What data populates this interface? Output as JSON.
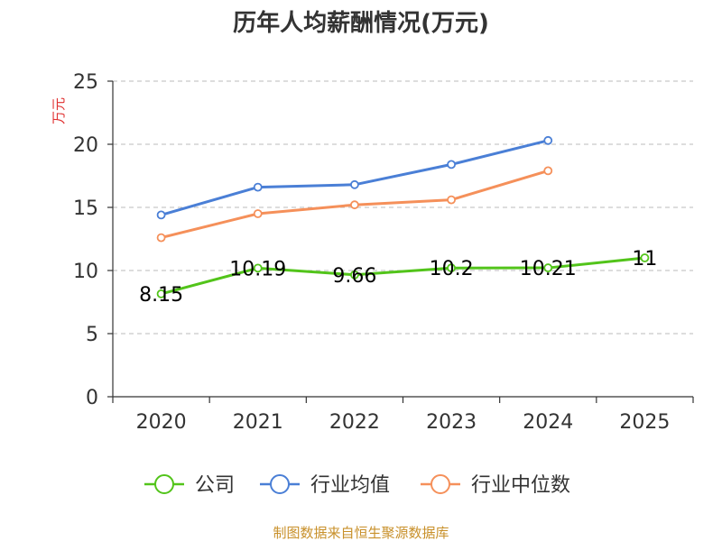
{
  "chart_data": {
    "type": "line",
    "title": "历年人均薪酬情况(万元)",
    "ylabel": "万元",
    "xlabel": "",
    "categories": [
      "2020",
      "2021",
      "2022",
      "2023",
      "2024",
      "2025"
    ],
    "ylim": [
      0,
      25
    ],
    "yticks": [
      0,
      5,
      10,
      15,
      20,
      25
    ],
    "grid": true,
    "legend_position": "bottom",
    "series": [
      {
        "name": "公司",
        "color": "#52c41a",
        "values": [
          8.15,
          10.19,
          9.66,
          10.2,
          10.21,
          11
        ],
        "labels": [
          "8.15",
          "10.19",
          "9.66",
          "10.2",
          "10.21",
          "11"
        ]
      },
      {
        "name": "行业均值",
        "color": "#4a7fd6",
        "values": [
          14.4,
          16.6,
          16.8,
          18.4,
          20.3,
          null
        ]
      },
      {
        "name": "行业中位数",
        "color": "#f5905a",
        "values": [
          12.6,
          14.5,
          15.2,
          15.6,
          17.9,
          null
        ]
      }
    ]
  },
  "colors": {
    "unit_label": "#e03030",
    "source": "#c8902a",
    "axis": "#333333",
    "grid": "#bbbbbb"
  },
  "source": "制图数据来自恒生聚源数据库"
}
